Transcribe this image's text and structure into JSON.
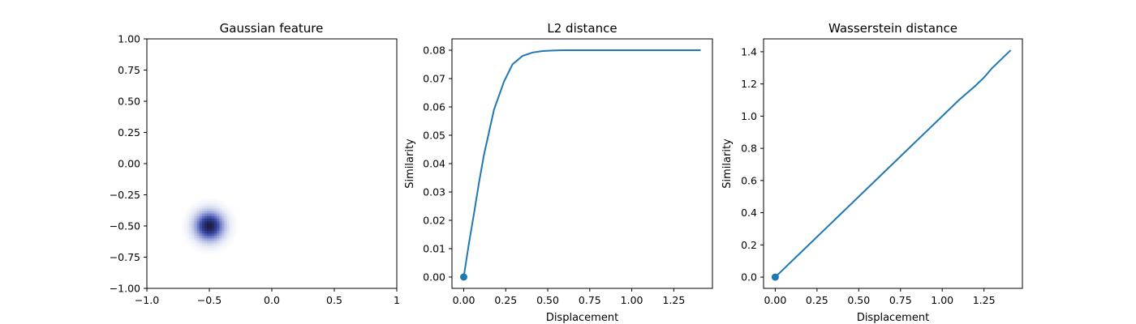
{
  "figure": {
    "background": "#ffffff"
  },
  "chart_data": [
    {
      "type": "heatmap",
      "title": "Gaussian feature",
      "xlabel": "",
      "ylabel": "",
      "xlim": [
        -1,
        1
      ],
      "ylim": [
        -1,
        1
      ],
      "xticks": [
        "−1.0",
        "−0.5",
        "0.0",
        "0.5",
        "1"
      ],
      "xtick_values": [
        -1,
        -0.5,
        0,
        0.5,
        1
      ],
      "yticks": [
        "−1.00",
        "−0.75",
        "−0.50",
        "−0.25",
        "0.00",
        "0.25",
        "0.50",
        "0.75",
        "1.00"
      ],
      "ytick_values": [
        -1,
        -0.75,
        -0.5,
        -0.25,
        0,
        0.25,
        0.5,
        0.75,
        1
      ],
      "grid": false,
      "colormap": "white-to-dark-blue",
      "colors": [
        "#ffffff",
        "#9da6da",
        "#3a4aa8",
        "#1b1e45"
      ],
      "gaussian": {
        "center": [
          -0.5,
          -0.5
        ],
        "sigma": 0.075,
        "resolution": 100
      }
    },
    {
      "type": "line",
      "title": "L2 distance",
      "xlabel": "Displacement",
      "ylabel": "Similarity",
      "xlim": [
        -0.07,
        1.48
      ],
      "ylim": [
        -0.004,
        0.084
      ],
      "xticks": [
        "0.00",
        "0.25",
        "0.50",
        "0.75",
        "1.00",
        "1.25"
      ],
      "xtick_values": [
        0,
        0.25,
        0.5,
        0.75,
        1,
        1.25
      ],
      "yticks": [
        "0.00",
        "0.01",
        "0.02",
        "0.03",
        "0.04",
        "0.05",
        "0.06",
        "0.07",
        "0.08"
      ],
      "ytick_values": [
        0,
        0.01,
        0.02,
        0.03,
        0.04,
        0.05,
        0.06,
        0.07,
        0.08
      ],
      "grid": false,
      "color": "#1f77b4",
      "x": [
        0,
        0.03,
        0.06,
        0.09,
        0.12,
        0.15,
        0.18,
        0.24,
        0.29,
        0.35,
        0.41,
        0.47,
        0.53,
        0.59,
        0.71,
        0.82,
        0.94,
        1.06,
        1.18,
        1.29,
        1.41
      ],
      "y": [
        0,
        0.0115,
        0.022,
        0.033,
        0.043,
        0.051,
        0.059,
        0.069,
        0.075,
        0.078,
        0.0792,
        0.0797,
        0.0799,
        0.08,
        0.08,
        0.08,
        0.08,
        0.08,
        0.08,
        0.08,
        0.08
      ],
      "marker_point": {
        "x": 0,
        "y": 0
      }
    },
    {
      "type": "line",
      "title": "Wasserstein distance",
      "xlabel": "Displacement",
      "ylabel": "Similarity",
      "xlim": [
        -0.07,
        1.48
      ],
      "ylim": [
        -0.07,
        1.48
      ],
      "xticks": [
        "0.00",
        "0.25",
        "0.50",
        "0.75",
        "1.00",
        "1.25"
      ],
      "xtick_values": [
        0,
        0.25,
        0.5,
        0.75,
        1,
        1.25
      ],
      "yticks": [
        "0.0",
        "0.2",
        "0.4",
        "0.6",
        "0.8",
        "1.0",
        "1.2",
        "1.4"
      ],
      "ytick_values": [
        0,
        0.2,
        0.4,
        0.6,
        0.8,
        1.0,
        1.2,
        1.4
      ],
      "grid": false,
      "color": "#1f77b4",
      "x": [
        0,
        0.2,
        0.4,
        0.6,
        0.8,
        1.0,
        1.1,
        1.2,
        1.25,
        1.3,
        1.41
      ],
      "y": [
        0,
        0.2,
        0.4,
        0.6,
        0.8,
        1.0,
        1.1,
        1.19,
        1.24,
        1.3,
        1.41
      ],
      "marker_point": {
        "x": 0,
        "y": 0
      }
    }
  ]
}
